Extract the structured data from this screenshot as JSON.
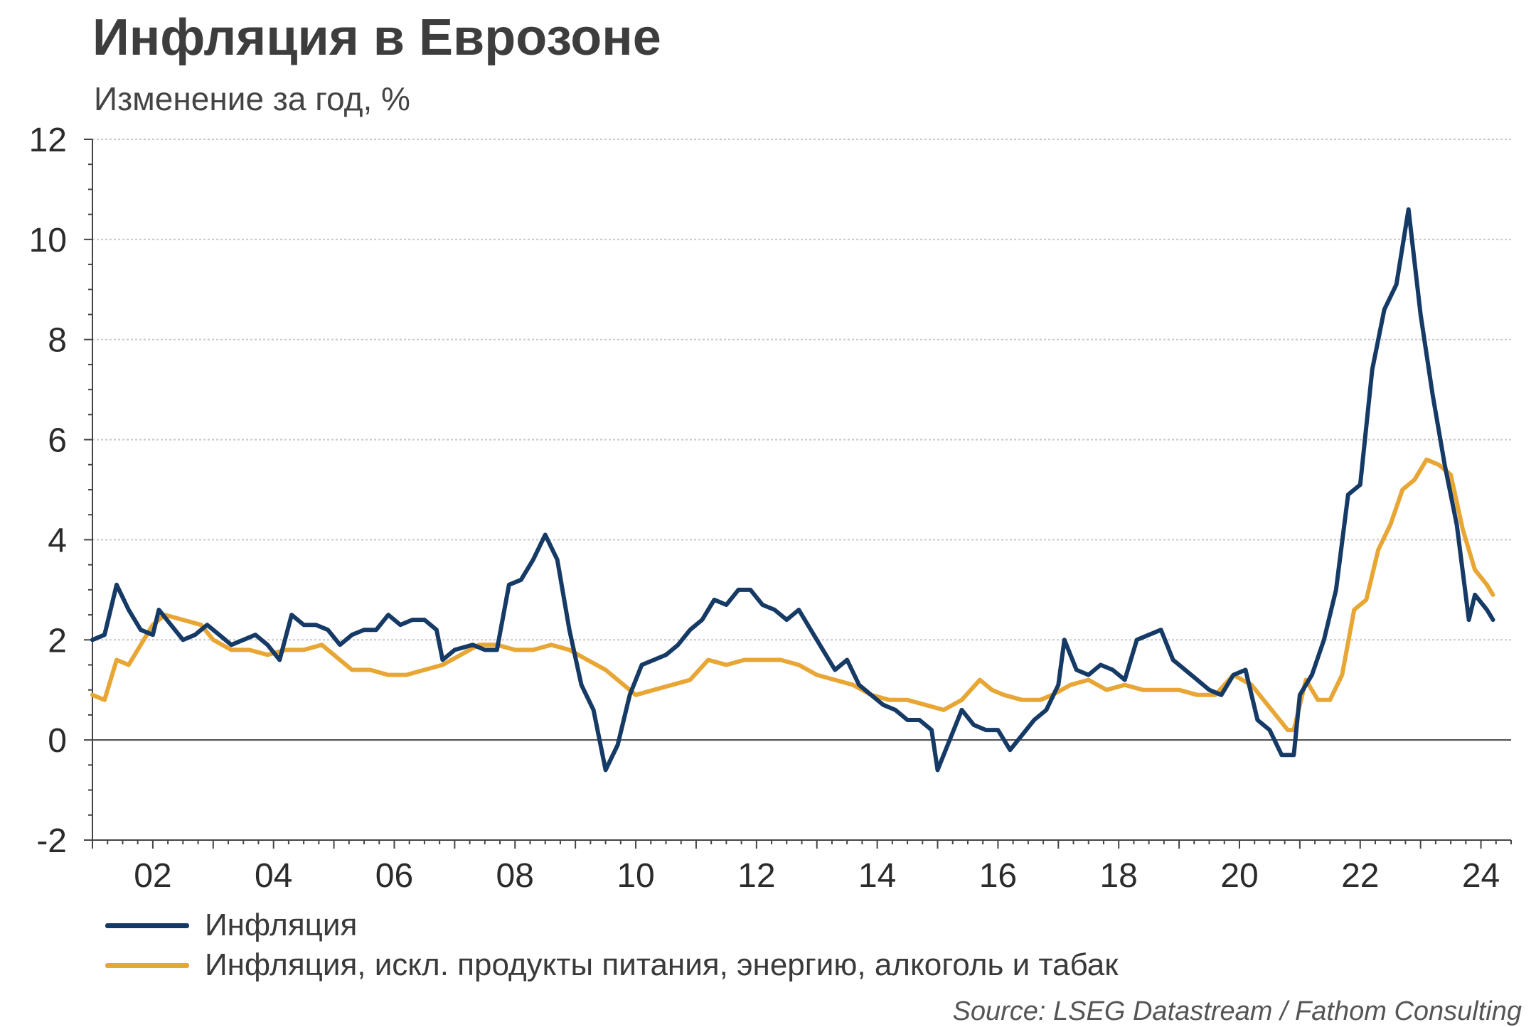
{
  "header": {
    "title": "Инфляция в Еврозоне",
    "subtitle": "Изменение за год, %"
  },
  "source": "Source: LSEG Datastream / Fathom Consulting",
  "colors": {
    "inflation": "#163a66",
    "core": "#e8a634",
    "grid": "#c8c8c8",
    "axis": "#444444"
  },
  "chart_data": {
    "type": "line",
    "title": "Инфляция в Еврозоне",
    "subtitle": "Изменение за год, %",
    "xlabel": "",
    "ylabel": "",
    "xlim": [
      2001.0,
      2024.5
    ],
    "ylim": [
      -2,
      12
    ],
    "yticks": [
      -2,
      0,
      2,
      4,
      6,
      8,
      10,
      12
    ],
    "xticks": [
      {
        "value": 2002,
        "label": "02"
      },
      {
        "value": 2004,
        "label": "04"
      },
      {
        "value": 2006,
        "label": "06"
      },
      {
        "value": 2008,
        "label": "08"
      },
      {
        "value": 2010,
        "label": "10"
      },
      {
        "value": 2012,
        "label": "12"
      },
      {
        "value": 2014,
        "label": "14"
      },
      {
        "value": 2016,
        "label": "16"
      },
      {
        "value": 2018,
        "label": "18"
      },
      {
        "value": 2020,
        "label": "20"
      },
      {
        "value": 2022,
        "label": "22"
      },
      {
        "value": 2024,
        "label": "24"
      }
    ],
    "grid": "horizontal dotted",
    "legend_position": "bottom-left",
    "series": [
      {
        "name": "Инфляция",
        "color": "#163a66",
        "points": [
          [
            2001.0,
            2.0
          ],
          [
            2001.2,
            2.1
          ],
          [
            2001.4,
            3.1
          ],
          [
            2001.6,
            2.6
          ],
          [
            2001.8,
            2.2
          ],
          [
            2002.0,
            2.1
          ],
          [
            2002.1,
            2.6
          ],
          [
            2002.3,
            2.3
          ],
          [
            2002.5,
            2.0
          ],
          [
            2002.7,
            2.1
          ],
          [
            2002.9,
            2.3
          ],
          [
            2003.1,
            2.1
          ],
          [
            2003.3,
            1.9
          ],
          [
            2003.5,
            2.0
          ],
          [
            2003.7,
            2.1
          ],
          [
            2003.9,
            1.9
          ],
          [
            2004.1,
            1.6
          ],
          [
            2004.3,
            2.5
          ],
          [
            2004.5,
            2.3
          ],
          [
            2004.7,
            2.3
          ],
          [
            2004.9,
            2.2
          ],
          [
            2005.1,
            1.9
          ],
          [
            2005.3,
            2.1
          ],
          [
            2005.5,
            2.2
          ],
          [
            2005.7,
            2.2
          ],
          [
            2005.9,
            2.5
          ],
          [
            2006.1,
            2.3
          ],
          [
            2006.3,
            2.4
          ],
          [
            2006.5,
            2.4
          ],
          [
            2006.7,
            2.2
          ],
          [
            2006.8,
            1.6
          ],
          [
            2007.0,
            1.8
          ],
          [
            2007.3,
            1.9
          ],
          [
            2007.5,
            1.8
          ],
          [
            2007.7,
            1.8
          ],
          [
            2007.9,
            3.1
          ],
          [
            2008.1,
            3.2
          ],
          [
            2008.3,
            3.6
          ],
          [
            2008.5,
            4.1
          ],
          [
            2008.7,
            3.6
          ],
          [
            2008.9,
            2.2
          ],
          [
            2009.1,
            1.1
          ],
          [
            2009.3,
            0.6
          ],
          [
            2009.5,
            -0.6
          ],
          [
            2009.7,
            -0.1
          ],
          [
            2009.9,
            0.9
          ],
          [
            2010.1,
            1.5
          ],
          [
            2010.3,
            1.6
          ],
          [
            2010.5,
            1.7
          ],
          [
            2010.7,
            1.9
          ],
          [
            2010.9,
            2.2
          ],
          [
            2011.1,
            2.4
          ],
          [
            2011.3,
            2.8
          ],
          [
            2011.5,
            2.7
          ],
          [
            2011.7,
            3.0
          ],
          [
            2011.9,
            3.0
          ],
          [
            2012.1,
            2.7
          ],
          [
            2012.3,
            2.6
          ],
          [
            2012.5,
            2.4
          ],
          [
            2012.7,
            2.6
          ],
          [
            2012.9,
            2.2
          ],
          [
            2013.1,
            1.8
          ],
          [
            2013.3,
            1.4
          ],
          [
            2013.5,
            1.6
          ],
          [
            2013.7,
            1.1
          ],
          [
            2013.9,
            0.9
          ],
          [
            2014.1,
            0.7
          ],
          [
            2014.3,
            0.6
          ],
          [
            2014.5,
            0.4
          ],
          [
            2014.7,
            0.4
          ],
          [
            2014.9,
            0.2
          ],
          [
            2015.0,
            -0.6
          ],
          [
            2015.2,
            0.0
          ],
          [
            2015.4,
            0.6
          ],
          [
            2015.6,
            0.3
          ],
          [
            2015.8,
            0.2
          ],
          [
            2016.0,
            0.2
          ],
          [
            2016.2,
            -0.2
          ],
          [
            2016.4,
            0.1
          ],
          [
            2016.6,
            0.4
          ],
          [
            2016.8,
            0.6
          ],
          [
            2017.0,
            1.1
          ],
          [
            2017.1,
            2.0
          ],
          [
            2017.3,
            1.4
          ],
          [
            2017.5,
            1.3
          ],
          [
            2017.7,
            1.5
          ],
          [
            2017.9,
            1.4
          ],
          [
            2018.1,
            1.2
          ],
          [
            2018.3,
            2.0
          ],
          [
            2018.5,
            2.1
          ],
          [
            2018.7,
            2.2
          ],
          [
            2018.9,
            1.6
          ],
          [
            2019.1,
            1.4
          ],
          [
            2019.3,
            1.2
          ],
          [
            2019.5,
            1.0
          ],
          [
            2019.7,
            0.9
          ],
          [
            2019.9,
            1.3
          ],
          [
            2020.1,
            1.4
          ],
          [
            2020.3,
            0.4
          ],
          [
            2020.5,
            0.2
          ],
          [
            2020.7,
            -0.3
          ],
          [
            2020.9,
            -0.3
          ],
          [
            2021.0,
            0.9
          ],
          [
            2021.2,
            1.3
          ],
          [
            2021.4,
            2.0
          ],
          [
            2021.6,
            3.0
          ],
          [
            2021.8,
            4.9
          ],
          [
            2022.0,
            5.1
          ],
          [
            2022.2,
            7.4
          ],
          [
            2022.4,
            8.6
          ],
          [
            2022.6,
            9.1
          ],
          [
            2022.8,
            10.6
          ],
          [
            2023.0,
            8.5
          ],
          [
            2023.2,
            6.9
          ],
          [
            2023.4,
            5.5
          ],
          [
            2023.6,
            4.3
          ],
          [
            2023.8,
            2.4
          ],
          [
            2023.9,
            2.9
          ],
          [
            2024.1,
            2.6
          ],
          [
            2024.2,
            2.4
          ]
        ]
      },
      {
        "name": "Инфляция, искл. продукты питания, энергию, алкоголь и табак",
        "color": "#e8a634",
        "points": [
          [
            2001.0,
            0.9
          ],
          [
            2001.2,
            0.8
          ],
          [
            2001.4,
            1.6
          ],
          [
            2001.6,
            1.5
          ],
          [
            2001.8,
            1.9
          ],
          [
            2002.0,
            2.3
          ],
          [
            2002.2,
            2.5
          ],
          [
            2002.5,
            2.4
          ],
          [
            2002.8,
            2.3
          ],
          [
            2003.0,
            2.0
          ],
          [
            2003.3,
            1.8
          ],
          [
            2003.6,
            1.8
          ],
          [
            2003.9,
            1.7
          ],
          [
            2004.2,
            1.8
          ],
          [
            2004.5,
            1.8
          ],
          [
            2004.8,
            1.9
          ],
          [
            2005.0,
            1.7
          ],
          [
            2005.3,
            1.4
          ],
          [
            2005.6,
            1.4
          ],
          [
            2005.9,
            1.3
          ],
          [
            2006.2,
            1.3
          ],
          [
            2006.5,
            1.4
          ],
          [
            2006.8,
            1.5
          ],
          [
            2007.1,
            1.7
          ],
          [
            2007.4,
            1.9
          ],
          [
            2007.7,
            1.9
          ],
          [
            2008.0,
            1.8
          ],
          [
            2008.3,
            1.8
          ],
          [
            2008.6,
            1.9
          ],
          [
            2008.9,
            1.8
          ],
          [
            2009.2,
            1.6
          ],
          [
            2009.5,
            1.4
          ],
          [
            2009.8,
            1.1
          ],
          [
            2010.0,
            0.9
          ],
          [
            2010.3,
            1.0
          ],
          [
            2010.6,
            1.1
          ],
          [
            2010.9,
            1.2
          ],
          [
            2011.2,
            1.6
          ],
          [
            2011.5,
            1.5
          ],
          [
            2011.8,
            1.6
          ],
          [
            2012.1,
            1.6
          ],
          [
            2012.4,
            1.6
          ],
          [
            2012.7,
            1.5
          ],
          [
            2013.0,
            1.3
          ],
          [
            2013.3,
            1.2
          ],
          [
            2013.6,
            1.1
          ],
          [
            2013.9,
            0.9
          ],
          [
            2014.2,
            0.8
          ],
          [
            2014.5,
            0.8
          ],
          [
            2014.8,
            0.7
          ],
          [
            2015.1,
            0.6
          ],
          [
            2015.4,
            0.8
          ],
          [
            2015.7,
            1.2
          ],
          [
            2015.9,
            1.0
          ],
          [
            2016.1,
            0.9
          ],
          [
            2016.4,
            0.8
          ],
          [
            2016.7,
            0.8
          ],
          [
            2016.9,
            0.9
          ],
          [
            2017.2,
            1.1
          ],
          [
            2017.5,
            1.2
          ],
          [
            2017.8,
            1.0
          ],
          [
            2018.1,
            1.1
          ],
          [
            2018.4,
            1.0
          ],
          [
            2018.7,
            1.0
          ],
          [
            2019.0,
            1.0
          ],
          [
            2019.3,
            0.9
          ],
          [
            2019.6,
            0.9
          ],
          [
            2019.9,
            1.3
          ],
          [
            2020.2,
            1.1
          ],
          [
            2020.4,
            0.8
          ],
          [
            2020.6,
            0.5
          ],
          [
            2020.8,
            0.2
          ],
          [
            2020.9,
            0.2
          ],
          [
            2021.1,
            1.2
          ],
          [
            2021.3,
            0.8
          ],
          [
            2021.5,
            0.8
          ],
          [
            2021.7,
            1.3
          ],
          [
            2021.9,
            2.6
          ],
          [
            2022.1,
            2.8
          ],
          [
            2022.3,
            3.8
          ],
          [
            2022.5,
            4.3
          ],
          [
            2022.7,
            5.0
          ],
          [
            2022.9,
            5.2
          ],
          [
            2023.1,
            5.6
          ],
          [
            2023.3,
            5.5
          ],
          [
            2023.5,
            5.3
          ],
          [
            2023.7,
            4.2
          ],
          [
            2023.9,
            3.4
          ],
          [
            2024.1,
            3.1
          ],
          [
            2024.2,
            2.9
          ]
        ]
      }
    ]
  }
}
